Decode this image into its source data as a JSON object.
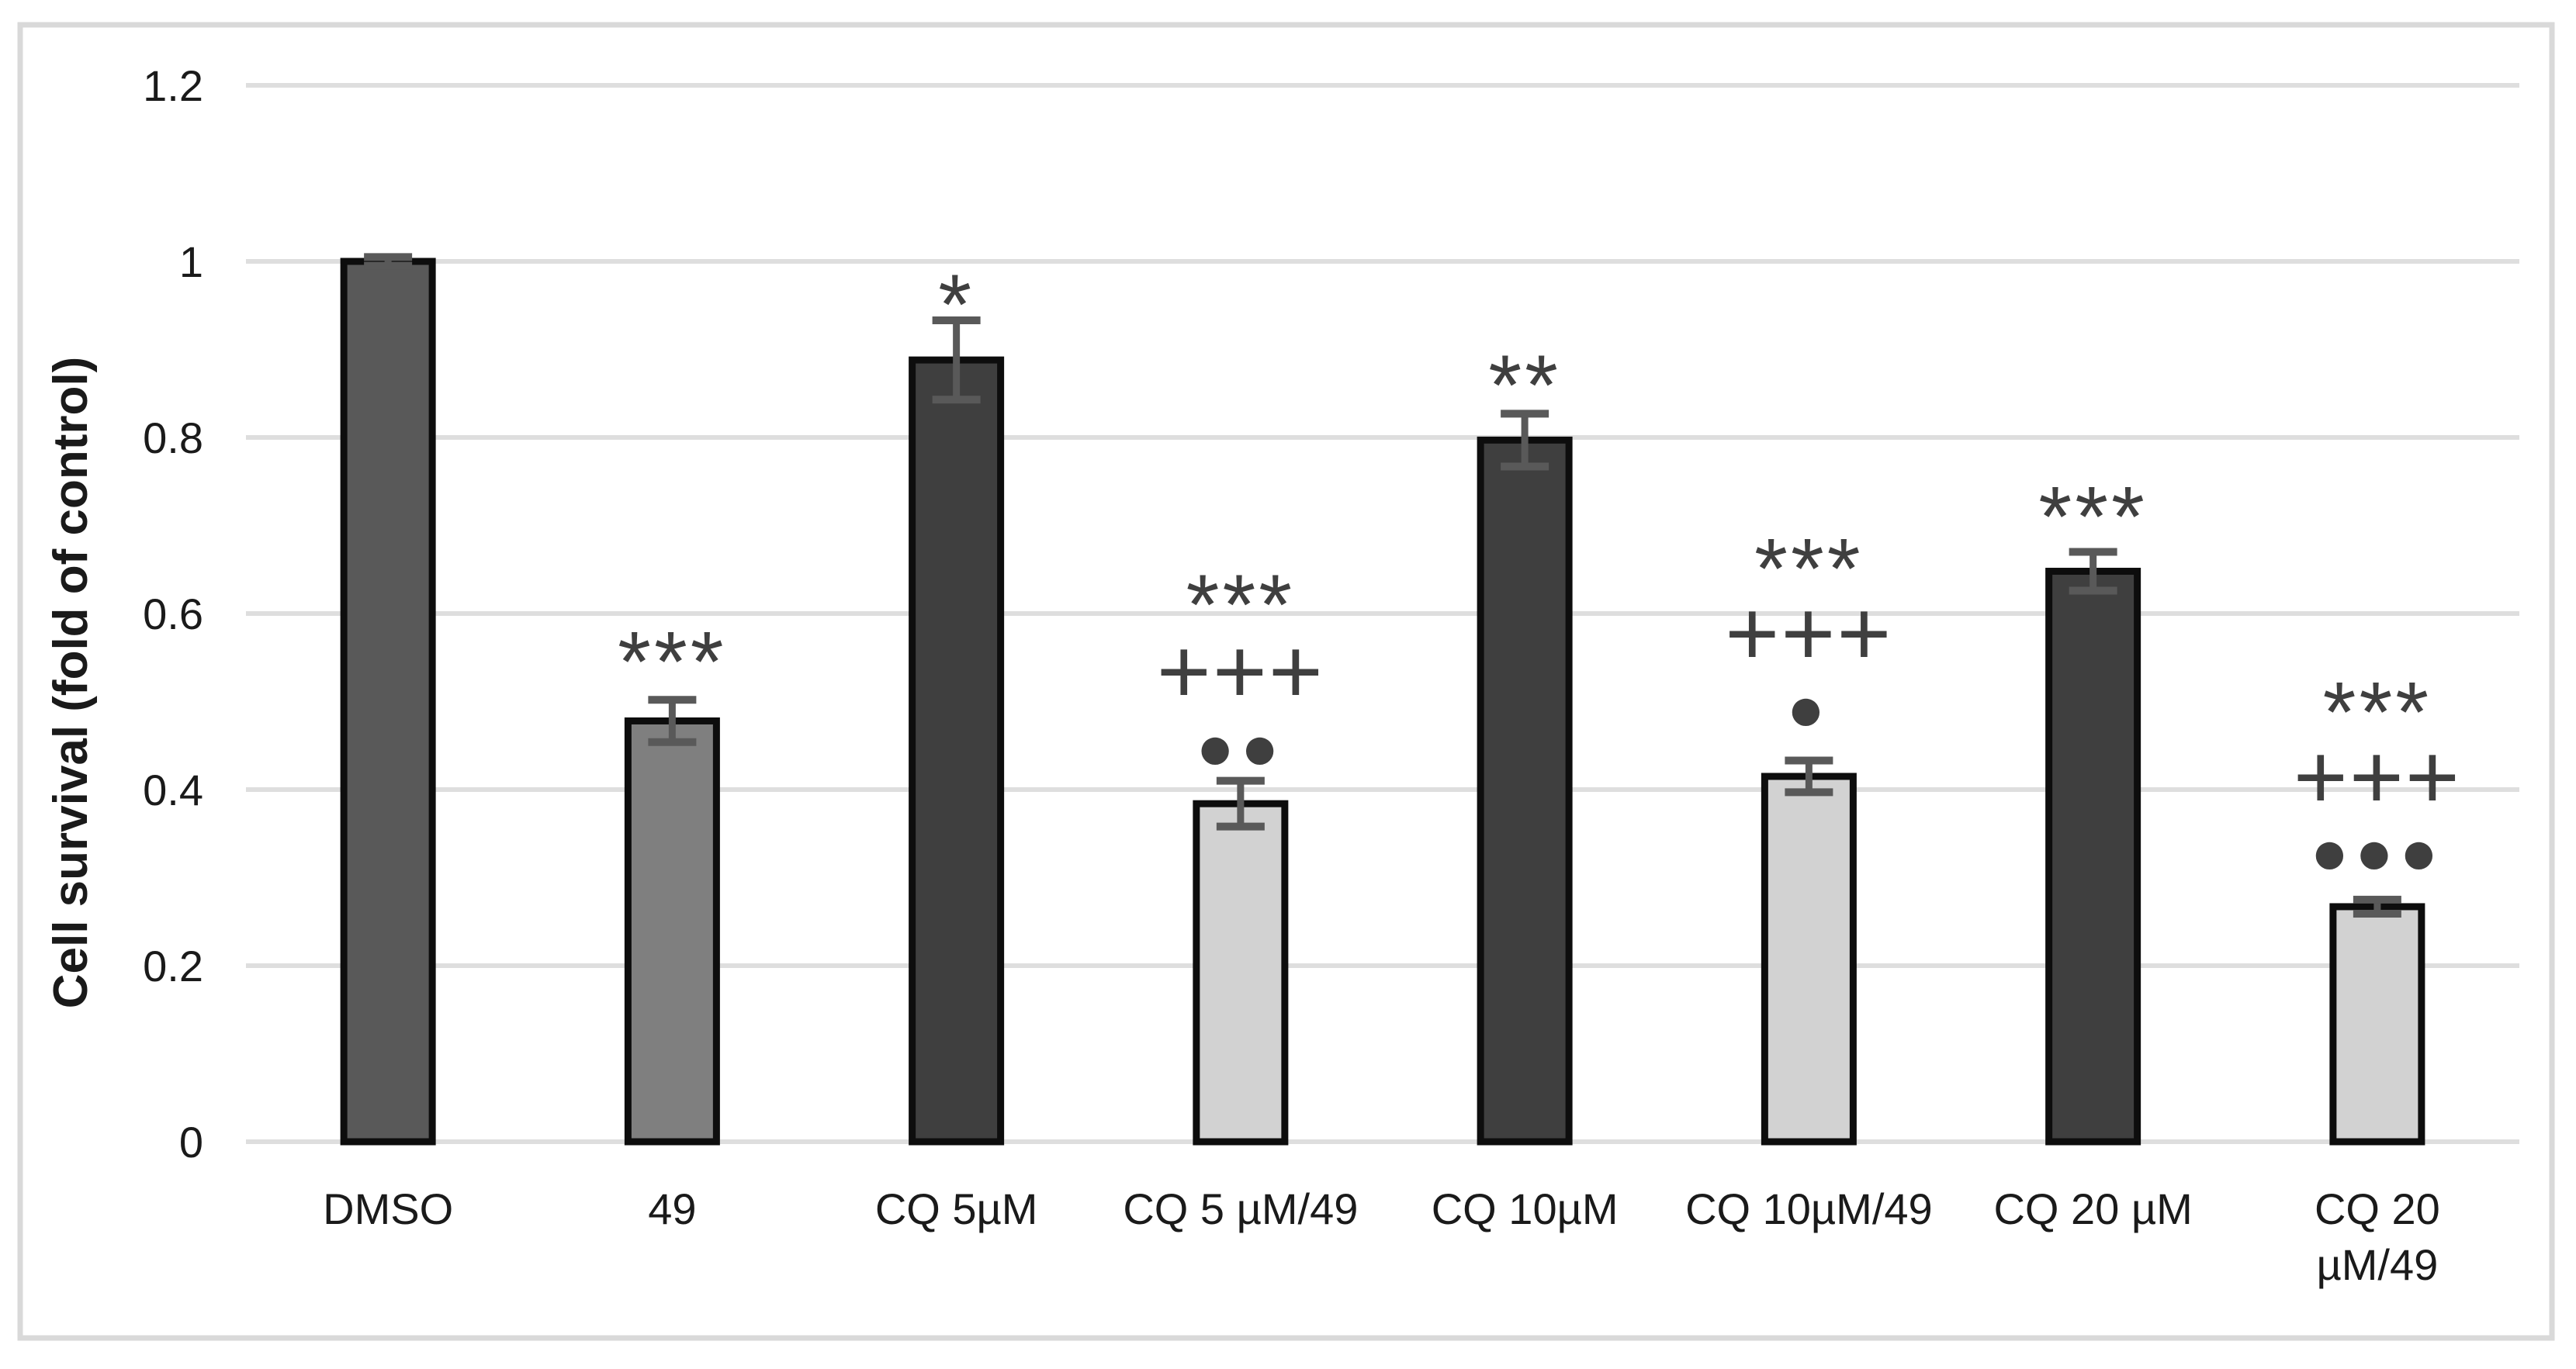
{
  "chart_data": {
    "type": "bar",
    "title": "",
    "xlabel": "",
    "ylabel": "Cell survival (fold of control)",
    "ylim": [
      0,
      1.2
    ],
    "grid": true,
    "legend": "none",
    "ytick_labels": [
      "0",
      "0.2",
      "0.4",
      "0.6",
      "0.8",
      "1",
      "1.2"
    ],
    "categories": [
      "DMSO",
      "49",
      "CQ 5µM",
      "CQ 5 µM/49",
      "CQ 10µM",
      "CQ 10µM/49",
      "CQ 20 µM",
      "CQ 20\nµM/49"
    ],
    "values": [
      1.0,
      0.478,
      0.888,
      0.384,
      0.797,
      0.415,
      0.648,
      0.267
    ],
    "errors": [
      0.005,
      0.024,
      0.045,
      0.026,
      0.03,
      0.018,
      0.022,
      0.008
    ],
    "bar_colors": [
      "#595959",
      "#7f7f7f",
      "#3f3f3f",
      "#d2d2d2",
      "#3f3f3f",
      "#d2d2d2",
      "#3f3f3f",
      "#d2d2d2"
    ],
    "bar_border_color": "#0d0d0d",
    "error_bar_color": "#595959",
    "gridline_color": "#dedede",
    "figure_border_color": "#d9d9d9",
    "text_color": "#1a1a1a",
    "annotation_color": "#3f3f3f",
    "annotations": [
      {
        "bar": 1,
        "items": [
          {
            "text": "***",
            "y": 0.562
          }
        ]
      },
      {
        "bar": 2,
        "items": [
          {
            "text": "*",
            "y": 0.968
          }
        ]
      },
      {
        "bar": 3,
        "items": [
          {
            "text": "***",
            "y": 0.627
          },
          {
            "text": "+++",
            "y": 0.53
          },
          {
            "text": "●●",
            "y": 0.448
          }
        ]
      },
      {
        "bar": 4,
        "items": [
          {
            "text": "**",
            "y": 0.876
          }
        ]
      },
      {
        "bar": 5,
        "items": [
          {
            "text": "***",
            "y": 0.668
          },
          {
            "text": "+++",
            "y": 0.573
          },
          {
            "text": "●",
            "y": 0.492
          }
        ]
      },
      {
        "bar": 6,
        "items": [
          {
            "text": "***",
            "y": 0.727
          }
        ]
      },
      {
        "bar": 7,
        "items": [
          {
            "text": "***",
            "y": 0.505
          },
          {
            "text": "+++",
            "y": 0.41
          },
          {
            "text": "●●●",
            "y": 0.329
          }
        ]
      }
    ]
  }
}
